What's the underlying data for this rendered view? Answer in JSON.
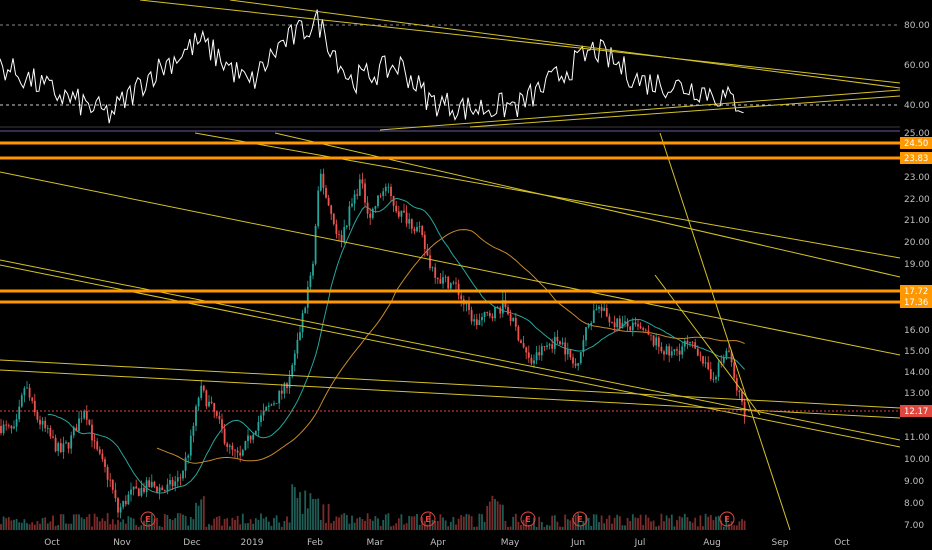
{
  "colors": {
    "background": "#000000",
    "up_candle": "#26a69a",
    "down_candle": "#ef5350",
    "trendline": "#d4c22a",
    "level_line": "#ff9800",
    "rsi_line": "#ffffff",
    "ma_short": "#26a69a",
    "ma_long": "#c88a2a",
    "current_price": "#e0483f"
  },
  "rsi_pane": {
    "scale_labels": [
      "80.00",
      "60.00",
      "40.00"
    ]
  },
  "price_pane": {
    "scale_labels": [
      "25.00",
      "23.00",
      "22.00",
      "21.00",
      "20.00",
      "19.00",
      "16.00",
      "15.00",
      "14.00",
      "13.00",
      "11.00",
      "10.00",
      "9.00",
      "8.00",
      "7.00"
    ],
    "level_tags": [
      "24.50",
      "23.83",
      "17.72",
      "17.36"
    ],
    "current_price_tag": "12.17"
  },
  "time_axis": {
    "labels": [
      "Oct",
      "Nov",
      "Dec",
      "2019",
      "Feb",
      "Mar",
      "Apr",
      "May",
      "Jun",
      "Jul",
      "Aug",
      "Sep",
      "Oct"
    ]
  },
  "earnings_markers": [
    "E",
    "E",
    "E",
    "E",
    "E"
  ],
  "chart_data": {
    "type": "candlestick",
    "series": [
      {
        "name": "",
        "x": [
          "Oct",
          "Nov",
          "Dec",
          "2019",
          "Feb",
          "Mar",
          "Apr",
          "May",
          "Jun",
          "Jul",
          "Aug"
        ],
        "values": [
          11.5,
          8.8,
          9.6,
          12.5,
          22.5,
          22.0,
          18.0,
          15.0,
          16.5,
          15.5,
          12.17
        ]
      }
    ],
    "y_range": [
      7.0,
      25.0
    ],
    "rsi_range": [
      30,
      90
    ],
    "horizontal_levels": [
      24.5,
      23.83,
      17.72,
      17.36
    ],
    "last_price": 12.17
  }
}
